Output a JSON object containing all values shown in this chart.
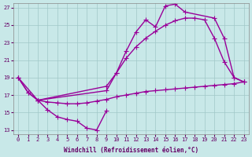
{
  "xlabel": "Windchill (Refroidissement éolien,°C)",
  "xlim": [
    -0.5,
    23.5
  ],
  "ylim": [
    12.5,
    27.5
  ],
  "yticks": [
    13,
    15,
    17,
    19,
    21,
    23,
    25,
    27
  ],
  "xticks": [
    0,
    1,
    2,
    3,
    4,
    5,
    6,
    7,
    8,
    9,
    10,
    11,
    12,
    13,
    14,
    15,
    16,
    17,
    18,
    19,
    20,
    21,
    22,
    23
  ],
  "bg_color": "#c8e8e8",
  "grid_color": "#a0c8c8",
  "line_color": "#990099",
  "line_width": 1.0,
  "marker_size": 4,
  "line1": {
    "x": [
      0,
      1,
      2,
      3,
      4,
      5,
      6,
      7,
      8,
      9
    ],
    "y": [
      19.0,
      17.3,
      16.4,
      15.3,
      14.5,
      14.2,
      14.0,
      13.2,
      13.0,
      15.2
    ]
  },
  "line2": {
    "x": [
      0,
      1,
      2,
      3,
      4,
      5,
      6,
      7,
      8,
      9,
      10,
      11,
      12,
      13,
      14,
      15,
      16,
      17,
      18,
      19,
      20,
      21,
      22,
      23
    ],
    "y": [
      19.0,
      17.3,
      16.4,
      16.2,
      16.1,
      16.0,
      16.0,
      16.1,
      16.3,
      16.5,
      16.8,
      17.0,
      17.2,
      17.4,
      17.5,
      17.6,
      17.7,
      17.8,
      17.9,
      18.0,
      18.1,
      18.2,
      18.3,
      18.5
    ]
  },
  "line3": {
    "x": [
      2,
      9,
      10,
      11,
      12,
      13,
      14,
      15,
      16,
      17,
      20,
      21,
      22,
      23
    ],
    "y": [
      16.4,
      17.5,
      19.5,
      22.0,
      24.2,
      25.6,
      24.8,
      27.2,
      27.4,
      26.5,
      25.8,
      23.5,
      19.0,
      18.5
    ]
  },
  "line4": {
    "x": [
      0,
      2,
      9,
      10,
      11,
      12,
      13,
      14,
      15,
      16,
      17,
      18,
      19,
      20,
      21,
      22,
      23
    ],
    "y": [
      19.0,
      16.4,
      18.0,
      19.5,
      21.2,
      22.5,
      23.5,
      24.3,
      25.0,
      25.5,
      25.8,
      25.8,
      25.6,
      23.5,
      20.8,
      19.0,
      18.5
    ]
  }
}
